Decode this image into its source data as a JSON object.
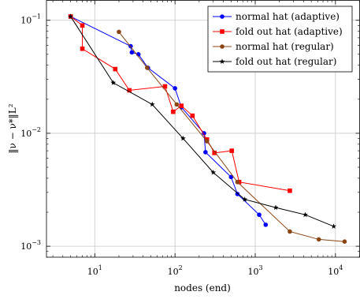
{
  "chart_data": {
    "type": "line",
    "title": "",
    "xlabel": "nodes (end)",
    "ylabel": "‖ν − ν*‖L²",
    "xscale": "log",
    "yscale": "log",
    "xlim": [
      2.5,
      20000
    ],
    "ylim": [
      0.0008,
      0.15
    ],
    "grid": true,
    "legend_position": "top-right",
    "x_tick_labels": [
      {
        "value": 10,
        "base": "10",
        "exp": "1"
      },
      {
        "value": 100,
        "base": "10",
        "exp": "2"
      },
      {
        "value": 1000,
        "base": "10",
        "exp": "3"
      },
      {
        "value": 10000,
        "base": "10",
        "exp": "4"
      }
    ],
    "y_tick_labels": [
      {
        "value": 0.001,
        "base": "10",
        "exp": "−3"
      },
      {
        "value": 0.01,
        "base": "10",
        "exp": "−2"
      },
      {
        "value": 0.1,
        "base": "10",
        "exp": "−1"
      }
    ],
    "series": [
      {
        "name": "normal hat (adaptive)",
        "color": "#0000ff",
        "marker": "circle",
        "x": [
          5,
          28,
          29,
          35,
          46,
          100,
          120,
          230,
          240,
          500,
          600,
          1120,
          1350
        ],
        "y": [
          0.108,
          0.059,
          0.052,
          0.05,
          0.038,
          0.025,
          0.017,
          0.01,
          0.0068,
          0.0041,
          0.0029,
          0.0019,
          0.00155
        ]
      },
      {
        "name": "fold out hat (adaptive)",
        "color": "#ff0000",
        "marker": "square",
        "x": [
          5,
          7,
          7,
          18,
          27,
          75,
          95,
          120,
          165,
          250,
          310,
          510,
          630,
          2700
        ],
        "y": [
          0.108,
          0.09,
          0.056,
          0.037,
          0.024,
          0.026,
          0.0155,
          0.0175,
          0.0143,
          0.0088,
          0.0067,
          0.007,
          0.0037,
          0.0031
        ]
      },
      {
        "name": "normal hat (regular)",
        "color": "#8b4513",
        "marker": "circle",
        "x": [
          20,
          45,
          105,
          250,
          600,
          2700,
          6200,
          13000
        ],
        "y": [
          0.079,
          0.038,
          0.018,
          0.0085,
          0.0037,
          0.00135,
          0.00115,
          0.0011
        ]
      },
      {
        "name": "fold out hat (regular)",
        "color": "#000000",
        "marker": "star",
        "x": [
          5,
          17,
          52,
          126,
          300,
          740,
          1800,
          4200,
          9500
        ],
        "y": [
          0.108,
          0.028,
          0.018,
          0.009,
          0.0045,
          0.0026,
          0.0022,
          0.0019,
          0.0015
        ]
      }
    ]
  }
}
